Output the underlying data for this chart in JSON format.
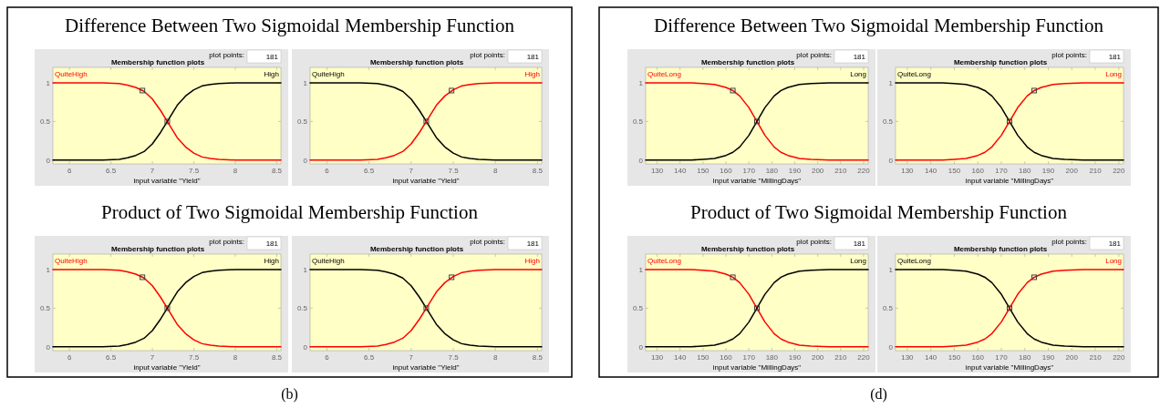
{
  "chart_data": [
    {
      "type": "line",
      "title": "Membership function plots",
      "xlabel": "input variable \"Yield\"",
      "xlim": [
        5.8,
        8.55
      ],
      "xticks": [
        6,
        6.5,
        7,
        7.5,
        8,
        8.5
      ],
      "ylim": [
        -0.05,
        1.2
      ],
      "yticks": [
        0,
        0.5,
        1
      ],
      "x": [
        5.8,
        6,
        6.2,
        6.4,
        6.6,
        6.7,
        6.8,
        6.9,
        7,
        7.1,
        7.18,
        7.3,
        7.4,
        7.5,
        7.6,
        7.7,
        7.8,
        8,
        8.2,
        8.55
      ],
      "annotations": [
        "plot points:",
        "181",
        "Difference Between Two Sigmoidal Membership Function"
      ],
      "series": [
        {
          "name": "QuiteHigh",
          "color": "#ff0000",
          "values": [
            1,
            1,
            1,
            1,
            0.99,
            0.97,
            0.94,
            0.89,
            0.79,
            0.64,
            0.5,
            0.29,
            0.17,
            0.09,
            0.04,
            0.02,
            0.01,
            0,
            0,
            0
          ]
        },
        {
          "name": "High",
          "color": "#000000",
          "values": [
            0,
            0,
            0,
            0,
            0.01,
            0.03,
            0.06,
            0.11,
            0.21,
            0.36,
            0.5,
            0.71,
            0.83,
            0.91,
            0.96,
            0.98,
            0.99,
            1,
            1,
            1
          ]
        },
        {
          "type": "scatter",
          "color": "#404040",
          "marker": "square",
          "x": [
            6.88,
            7.18
          ],
          "values": [
            0.9,
            0.5
          ]
        }
      ]
    },
    {
      "type": "line",
      "title": "Membership function plots",
      "xlabel": "input variable \"Yield\"",
      "xlim": [
        5.8,
        8.55
      ],
      "xticks": [
        6,
        6.5,
        7,
        7.5,
        8,
        8.5
      ],
      "ylim": [
        -0.05,
        1.2
      ],
      "yticks": [
        0,
        0.5,
        1
      ],
      "x": [
        5.8,
        6,
        6.2,
        6.4,
        6.6,
        6.7,
        6.8,
        6.9,
        7,
        7.1,
        7.18,
        7.3,
        7.4,
        7.5,
        7.6,
        7.7,
        7.8,
        8,
        8.2,
        8.55
      ],
      "annotations": [
        "plot points:",
        "181"
      ],
      "series": [
        {
          "name": "QuiteHigh",
          "color": "#000000",
          "values": [
            1,
            1,
            1,
            1,
            0.99,
            0.97,
            0.94,
            0.89,
            0.79,
            0.64,
            0.5,
            0.29,
            0.17,
            0.09,
            0.04,
            0.02,
            0.01,
            0,
            0,
            0
          ]
        },
        {
          "name": "High",
          "color": "#ff0000",
          "values": [
            0,
            0,
            0,
            0,
            0.01,
            0.03,
            0.06,
            0.11,
            0.21,
            0.36,
            0.5,
            0.71,
            0.83,
            0.91,
            0.96,
            0.98,
            0.99,
            1,
            1,
            1
          ]
        },
        {
          "type": "scatter",
          "color": "#404040",
          "marker": "square",
          "x": [
            7.18,
            7.48
          ],
          "values": [
            0.5,
            0.9
          ]
        }
      ]
    },
    {
      "type": "line",
      "title": "Membership function plots",
      "xlabel": "input variable \"Yield\"",
      "xlim": [
        5.8,
        8.55
      ],
      "xticks": [
        6,
        6.5,
        7,
        7.5,
        8,
        8.5
      ],
      "ylim": [
        -0.05,
        1.2
      ],
      "yticks": [
        0,
        0.5,
        1
      ],
      "x": [
        5.8,
        6,
        6.2,
        6.4,
        6.6,
        6.7,
        6.8,
        6.9,
        7,
        7.1,
        7.18,
        7.3,
        7.4,
        7.5,
        7.6,
        7.7,
        7.8,
        8,
        8.2,
        8.55
      ],
      "annotations": [
        "plot points:",
        "181",
        "Product of Two Sigmoidal Membership Function",
        "(b)"
      ],
      "series": [
        {
          "name": "QuiteHigh",
          "color": "#ff0000",
          "values": [
            1,
            1,
            1,
            1,
            0.99,
            0.97,
            0.94,
            0.89,
            0.79,
            0.64,
            0.5,
            0.29,
            0.17,
            0.09,
            0.04,
            0.02,
            0.01,
            0,
            0,
            0
          ]
        },
        {
          "name": "High",
          "color": "#000000",
          "values": [
            0,
            0,
            0,
            0,
            0.01,
            0.03,
            0.06,
            0.11,
            0.21,
            0.36,
            0.5,
            0.71,
            0.83,
            0.91,
            0.96,
            0.98,
            0.99,
            1,
            1,
            1
          ]
        },
        {
          "type": "scatter",
          "color": "#404040",
          "marker": "square",
          "x": [
            6.88,
            7.18
          ],
          "values": [
            0.9,
            0.5
          ]
        }
      ]
    },
    {
      "type": "line",
      "title": "Membership function plots",
      "xlabel": "input variable \"Yield\"",
      "xlim": [
        5.8,
        8.55
      ],
      "xticks": [
        6,
        6.5,
        7,
        7.5,
        8,
        8.5
      ],
      "ylim": [
        -0.05,
        1.2
      ],
      "yticks": [
        0,
        0.5,
        1
      ],
      "x": [
        5.8,
        6,
        6.2,
        6.4,
        6.6,
        6.7,
        6.8,
        6.9,
        7,
        7.1,
        7.18,
        7.3,
        7.4,
        7.5,
        7.6,
        7.7,
        7.8,
        8,
        8.2,
        8.55
      ],
      "annotations": [
        "plot points:",
        "181"
      ],
      "series": [
        {
          "name": "QuiteHigh",
          "color": "#000000",
          "values": [
            1,
            1,
            1,
            1,
            0.99,
            0.97,
            0.94,
            0.89,
            0.79,
            0.64,
            0.5,
            0.29,
            0.17,
            0.09,
            0.04,
            0.02,
            0.01,
            0,
            0,
            0
          ]
        },
        {
          "name": "High",
          "color": "#ff0000",
          "values": [
            0,
            0,
            0,
            0,
            0.01,
            0.03,
            0.06,
            0.11,
            0.21,
            0.36,
            0.5,
            0.71,
            0.83,
            0.91,
            0.96,
            0.98,
            0.99,
            1,
            1,
            1
          ]
        },
        {
          "type": "scatter",
          "color": "#404040",
          "marker": "square",
          "x": [
            7.18,
            7.48
          ],
          "values": [
            0.5,
            0.9
          ]
        }
      ]
    },
    {
      "type": "line",
      "title": "Membership function plots",
      "xlabel": "input variable \"MillingDays\"",
      "xlim": [
        125,
        222
      ],
      "xticks": [
        130,
        140,
        150,
        160,
        170,
        180,
        190,
        200,
        210,
        220
      ],
      "ylim": [
        -0.05,
        1.2
      ],
      "yticks": [
        0,
        0.5,
        1
      ],
      "x": [
        125,
        135,
        145,
        150,
        155,
        160,
        163,
        166,
        170,
        173.5,
        177,
        181,
        184,
        187,
        192,
        197,
        205,
        222
      ],
      "annotations": [
        "plot points:",
        "181",
        "Difference Between Two Sigmoidal Membership Function"
      ],
      "series": [
        {
          "name": "QuiteLong",
          "color": "#ff0000",
          "values": [
            1,
            1,
            1,
            0.99,
            0.98,
            0.94,
            0.9,
            0.83,
            0.68,
            0.5,
            0.32,
            0.17,
            0.1,
            0.06,
            0.02,
            0.01,
            0,
            0
          ]
        },
        {
          "name": "Long",
          "color": "#000000",
          "values": [
            0,
            0,
            0,
            0.01,
            0.02,
            0.06,
            0.1,
            0.17,
            0.32,
            0.5,
            0.68,
            0.83,
            0.9,
            0.94,
            0.98,
            0.99,
            1,
            1
          ]
        },
        {
          "type": "scatter",
          "color": "#404040",
          "marker": "square",
          "x": [
            163,
            173.5
          ],
          "values": [
            0.9,
            0.5
          ]
        }
      ]
    },
    {
      "type": "line",
      "title": "Membership function plots",
      "xlabel": "input variable \"MillingDays\"",
      "xlim": [
        125,
        222
      ],
      "xticks": [
        130,
        140,
        150,
        160,
        170,
        180,
        190,
        200,
        210,
        220
      ],
      "ylim": [
        -0.05,
        1.2
      ],
      "yticks": [
        0,
        0.5,
        1
      ],
      "x": [
        125,
        135,
        145,
        150,
        155,
        160,
        163,
        166,
        170,
        173.5,
        177,
        181,
        184,
        187,
        192,
        197,
        205,
        222
      ],
      "annotations": [
        "plot points:",
        "181"
      ],
      "series": [
        {
          "name": "QuiteLong",
          "color": "#000000",
          "values": [
            1,
            1,
            1,
            0.99,
            0.98,
            0.94,
            0.9,
            0.83,
            0.68,
            0.5,
            0.32,
            0.17,
            0.1,
            0.06,
            0.02,
            0.01,
            0,
            0
          ]
        },
        {
          "name": "Long",
          "color": "#ff0000",
          "values": [
            0,
            0,
            0,
            0.01,
            0.02,
            0.06,
            0.1,
            0.17,
            0.32,
            0.5,
            0.68,
            0.83,
            0.9,
            0.94,
            0.98,
            0.99,
            1,
            1
          ]
        },
        {
          "type": "scatter",
          "color": "#404040",
          "marker": "square",
          "x": [
            173.5,
            184
          ],
          "values": [
            0.5,
            0.9
          ]
        }
      ]
    },
    {
      "type": "line",
      "title": "Membership function plots",
      "xlabel": "input variable \"MillingDays\"",
      "xlim": [
        125,
        222
      ],
      "xticks": [
        130,
        140,
        150,
        160,
        170,
        180,
        190,
        200,
        210,
        220
      ],
      "ylim": [
        -0.05,
        1.2
      ],
      "yticks": [
        0,
        0.5,
        1
      ],
      "x": [
        125,
        135,
        145,
        150,
        155,
        160,
        163,
        166,
        170,
        173.5,
        177,
        181,
        184,
        187,
        192,
        197,
        205,
        222
      ],
      "annotations": [
        "plot points:",
        "181",
        "Product of Two Sigmoidal Membership Function",
        "(d)"
      ],
      "series": [
        {
          "name": "QuiteLong",
          "color": "#ff0000",
          "values": [
            1,
            1,
            1,
            0.99,
            0.98,
            0.94,
            0.9,
            0.83,
            0.68,
            0.5,
            0.32,
            0.17,
            0.1,
            0.06,
            0.02,
            0.01,
            0,
            0
          ]
        },
        {
          "name": "Long",
          "color": "#000000",
          "values": [
            0,
            0,
            0,
            0.01,
            0.02,
            0.06,
            0.1,
            0.17,
            0.32,
            0.5,
            0.68,
            0.83,
            0.9,
            0.94,
            0.98,
            0.99,
            1,
            1
          ]
        },
        {
          "type": "scatter",
          "color": "#404040",
          "marker": "square",
          "x": [
            163,
            173.5
          ],
          "values": [
            0.9,
            0.5
          ]
        }
      ]
    },
    {
      "type": "line",
      "title": "Membership function plots",
      "xlabel": "input variable \"MillingDays\"",
      "xlim": [
        125,
        222
      ],
      "xticks": [
        130,
        140,
        150,
        160,
        170,
        180,
        190,
        200,
        210,
        220
      ],
      "ylim": [
        -0.05,
        1.2
      ],
      "yticks": [
        0,
        0.5,
        1
      ],
      "x": [
        125,
        135,
        145,
        150,
        155,
        160,
        163,
        166,
        170,
        173.5,
        177,
        181,
        184,
        187,
        192,
        197,
        205,
        222
      ],
      "annotations": [
        "plot points:",
        "181"
      ],
      "series": [
        {
          "name": "QuiteLong",
          "color": "#000000",
          "values": [
            1,
            1,
            1,
            0.99,
            0.98,
            0.94,
            0.9,
            0.83,
            0.68,
            0.5,
            0.32,
            0.17,
            0.1,
            0.06,
            0.02,
            0.01,
            0,
            0
          ]
        },
        {
          "name": "Long",
          "color": "#ff0000",
          "values": [
            0,
            0,
            0,
            0.01,
            0.02,
            0.06,
            0.1,
            0.17,
            0.32,
            0.5,
            0.68,
            0.83,
            0.9,
            0.94,
            0.98,
            0.99,
            1,
            1
          ]
        },
        {
          "type": "scatter",
          "color": "#404040",
          "marker": "square",
          "x": [
            173.5,
            184
          ],
          "values": [
            0.5,
            0.9
          ]
        }
      ]
    }
  ]
}
